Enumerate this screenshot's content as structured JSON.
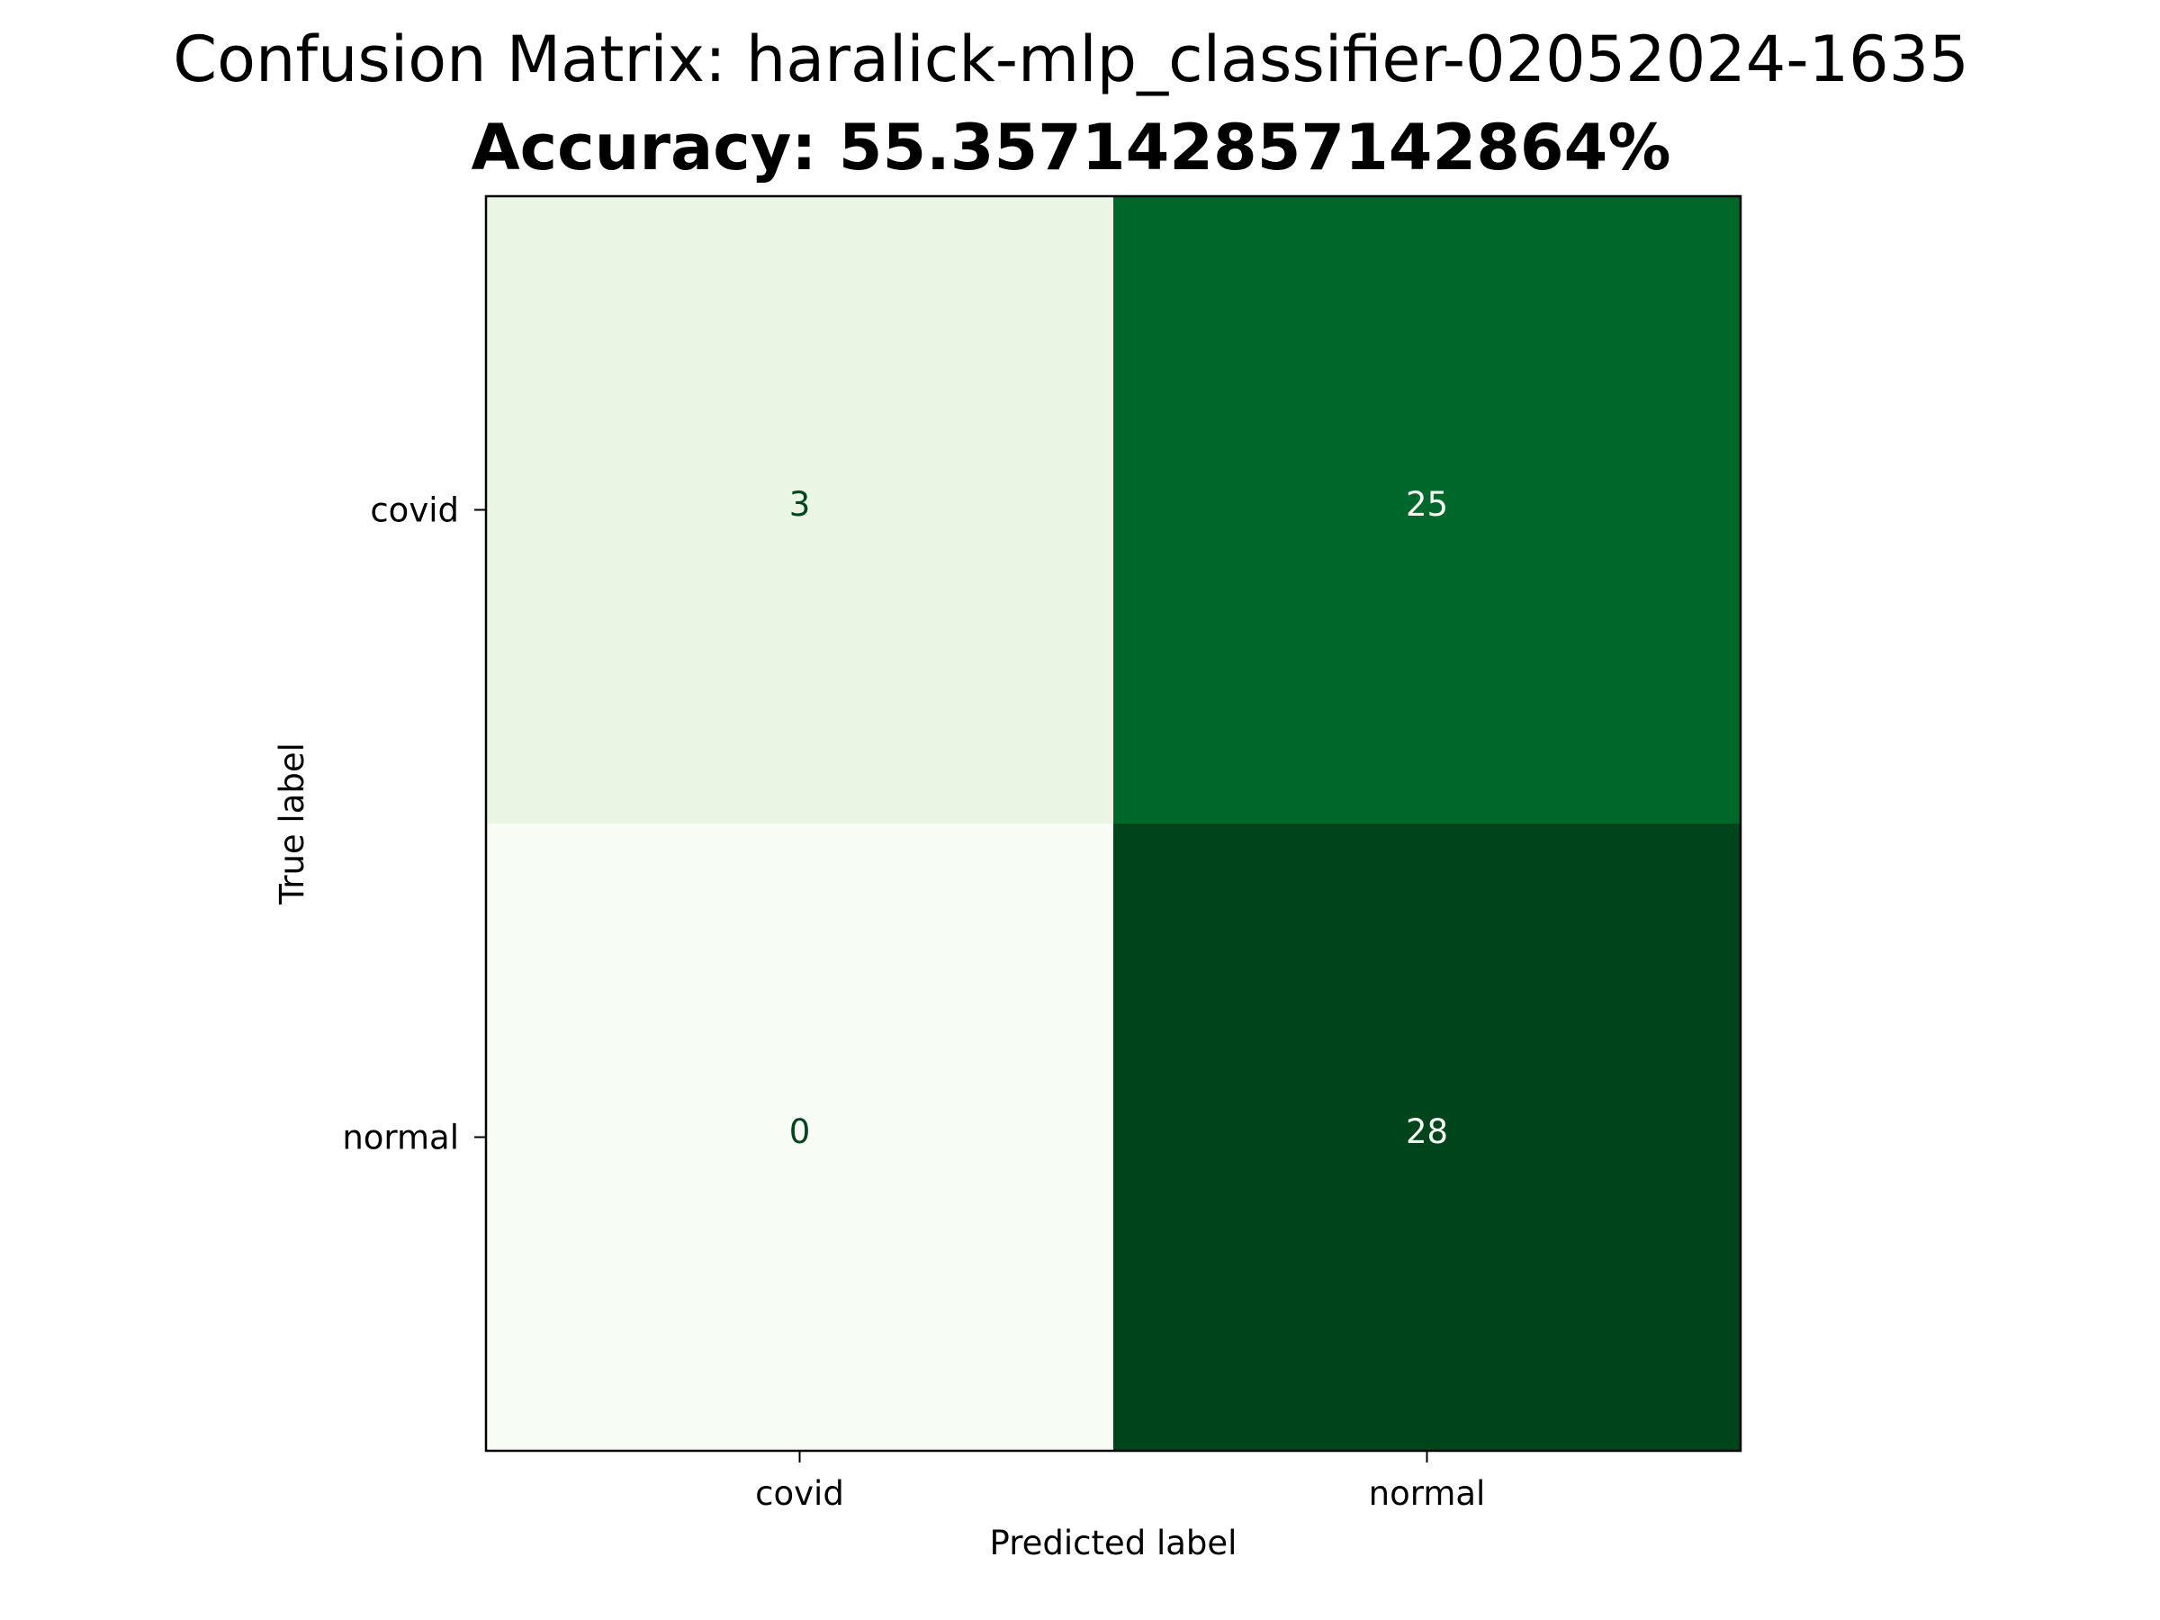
{
  "chart_data": {
    "type": "heatmap",
    "title": "Confusion Matrix: haralick-mlp_classifier-02052024-1635",
    "subtitle": "Accuracy: 55.357142857142864%",
    "xlabel": "Predicted label",
    "ylabel": "True label",
    "x_categories": [
      "covid",
      "normal"
    ],
    "y_categories": [
      "covid",
      "normal"
    ],
    "values": [
      [
        3,
        25
      ],
      [
        0,
        28
      ]
    ],
    "value_range": [
      0,
      28
    ],
    "colormap": "Greens",
    "colorbar": false,
    "grid": false
  }
}
